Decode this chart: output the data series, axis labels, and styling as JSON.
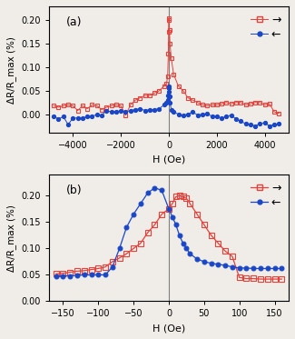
{
  "panel_a": {
    "red_x": [
      -4800,
      -4600,
      -4400,
      -4200,
      -4000,
      -3800,
      -3600,
      -3400,
      -3200,
      -3000,
      -2800,
      -2600,
      -2400,
      -2200,
      -2000,
      -1800,
      -1600,
      -1400,
      -1200,
      -1000,
      -800,
      -600,
      -400,
      -200,
      -100,
      -50,
      -20,
      -10,
      0,
      10,
      20,
      50,
      100,
      200,
      400,
      600,
      800,
      1000,
      1200,
      1400,
      1600,
      1800,
      2000,
      2200,
      2400,
      2600,
      2800,
      3000,
      3200,
      3400,
      3600,
      3800,
      4000,
      4200,
      4400,
      4600
    ],
    "red_y": [
      0.018,
      0.015,
      0.018,
      0.02,
      0.018,
      0.008,
      0.018,
      0.012,
      0.02,
      0.018,
      0.01,
      0.015,
      0.018,
      0.02,
      0.018,
      -0.002,
      0.02,
      0.03,
      0.035,
      0.04,
      0.04,
      0.045,
      0.05,
      0.06,
      0.065,
      0.08,
      0.13,
      0.175,
      0.205,
      0.2,
      0.18,
      0.15,
      0.12,
      0.085,
      0.06,
      0.05,
      0.035,
      0.03,
      0.025,
      0.02,
      0.018,
      0.02,
      0.02,
      0.022,
      0.025,
      0.022,
      0.025,
      0.025,
      0.02,
      0.022,
      0.025,
      0.025,
      0.02,
      0.022,
      0.005,
      0.002
    ],
    "blue_x": [
      -4800,
      -4600,
      -4400,
      -4200,
      -4000,
      -3800,
      -3600,
      -3400,
      -3200,
      -3000,
      -2800,
      -2600,
      -2400,
      -2200,
      -2000,
      -1800,
      -1600,
      -1400,
      -1200,
      -1000,
      -800,
      -600,
      -400,
      -200,
      -100,
      -50,
      -20,
      -10,
      0,
      10,
      20,
      50,
      100,
      200,
      400,
      600,
      800,
      1000,
      1200,
      1400,
      1600,
      1800,
      2000,
      2200,
      2400,
      2600,
      2800,
      3000,
      3200,
      3400,
      3600,
      3800,
      4000,
      4200,
      4400,
      4600
    ],
    "blue_y": [
      -0.005,
      -0.01,
      -0.005,
      -0.022,
      -0.008,
      -0.008,
      -0.008,
      -0.005,
      -0.005,
      0.0,
      -0.002,
      0.008,
      0.005,
      0.005,
      0.008,
      0.005,
      0.008,
      0.01,
      0.012,
      0.008,
      0.01,
      0.01,
      0.012,
      0.02,
      0.025,
      0.03,
      0.04,
      0.06,
      0.055,
      0.048,
      0.038,
      0.025,
      0.01,
      0.005,
      0.0,
      -0.002,
      0.0,
      0.005,
      -0.002,
      0.0,
      0.002,
      -0.005,
      -0.005,
      -0.008,
      -0.005,
      -0.002,
      -0.01,
      -0.015,
      -0.02,
      -0.022,
      -0.025,
      -0.02,
      -0.018,
      -0.025,
      -0.022,
      -0.02
    ],
    "xlim": [
      -5000,
      5000
    ],
    "ylim": [
      -0.04,
      0.23
    ],
    "yticks": [
      0.0,
      0.05,
      0.1,
      0.15,
      0.2
    ],
    "xticks": [
      -4000,
      -2000,
      0,
      2000,
      4000
    ]
  },
  "panel_b": {
    "red_x": [
      -160,
      -150,
      -140,
      -130,
      -120,
      -110,
      -100,
      -90,
      -80,
      -70,
      -60,
      -50,
      -40,
      -30,
      -20,
      -10,
      0,
      5,
      10,
      15,
      20,
      25,
      30,
      40,
      50,
      60,
      70,
      80,
      90,
      100,
      110,
      120,
      130,
      140,
      150,
      160
    ],
    "red_y": [
      0.052,
      0.053,
      0.055,
      0.057,
      0.058,
      0.06,
      0.062,
      0.065,
      0.075,
      0.082,
      0.09,
      0.1,
      0.11,
      0.13,
      0.145,
      0.165,
      0.175,
      0.185,
      0.198,
      0.2,
      0.198,
      0.195,
      0.185,
      0.165,
      0.145,
      0.125,
      0.11,
      0.095,
      0.085,
      0.045,
      0.043,
      0.043,
      0.042,
      0.042,
      0.042,
      0.042
    ],
    "blue_x": [
      -160,
      -150,
      -140,
      -130,
      -120,
      -110,
      -100,
      -90,
      -80,
      -70,
      -60,
      -50,
      -40,
      -30,
      -20,
      -10,
      0,
      5,
      10,
      15,
      20,
      25,
      30,
      40,
      50,
      60,
      70,
      80,
      90,
      100,
      110,
      120,
      130,
      140,
      150,
      160
    ],
    "blue_y": [
      0.047,
      0.048,
      0.048,
      0.049,
      0.05,
      0.05,
      0.05,
      0.05,
      0.065,
      0.1,
      0.14,
      0.165,
      0.185,
      0.205,
      0.215,
      0.21,
      0.175,
      0.16,
      0.145,
      0.125,
      0.11,
      0.1,
      0.09,
      0.08,
      0.075,
      0.072,
      0.07,
      0.068,
      0.065,
      0.063,
      0.063,
      0.062,
      0.062,
      0.062,
      0.062,
      0.062
    ],
    "xlim": [
      -170,
      170
    ],
    "ylim": [
      0.0,
      0.24
    ],
    "yticks": [
      0.0,
      0.05,
      0.1,
      0.15,
      0.2
    ],
    "xticks": [
      -150,
      -100,
      -50,
      0,
      50,
      100,
      150
    ]
  },
  "red_color": "#e8403a",
  "blue_color": "#1a47c8",
  "ylabel": "ΔR/R_max (%)",
  "xlabel": "H (Oe)",
  "label_a": "(a)",
  "label_b": "(b)",
  "bg_color": "#f0ede8"
}
